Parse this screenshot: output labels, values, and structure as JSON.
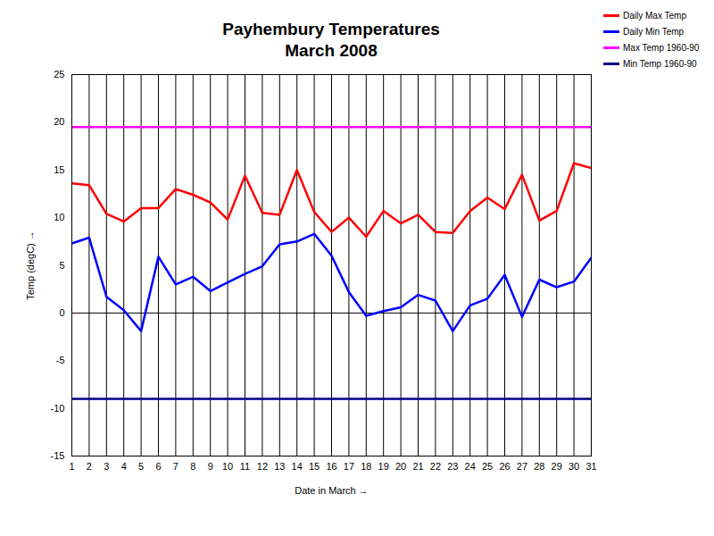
{
  "chart_data": {
    "type": "line",
    "title": "Payhembury Temperatures",
    "subtitle": "March 2008",
    "x_label": "Date in March",
    "y_label": "Temp (degC)",
    "x": [
      1,
      2,
      3,
      4,
      5,
      6,
      7,
      8,
      9,
      10,
      11,
      12,
      13,
      14,
      15,
      16,
      17,
      18,
      19,
      20,
      21,
      22,
      23,
      24,
      25,
      26,
      27,
      28,
      29,
      30,
      31
    ],
    "series": [
      {
        "name": "Daily Max Temp",
        "color": "#ff0000",
        "values": [
          13.6,
          13.4,
          10.4,
          9.6,
          11.0,
          11.0,
          13.0,
          12.4,
          11.6,
          9.8,
          14.4,
          10.5,
          10.3,
          15.0,
          10.6,
          8.5,
          10.0,
          8.0,
          10.7,
          9.4,
          10.3,
          8.5,
          8.4,
          10.7,
          12.1,
          10.9,
          14.5,
          9.7,
          10.7,
          15.7,
          15.2
        ]
      },
      {
        "name": "Daily Min Temp",
        "color": "#0000ff",
        "values": [
          7.3,
          7.9,
          1.7,
          0.3,
          -1.9,
          5.9,
          3.0,
          3.8,
          2.3,
          3.2,
          4.1,
          4.9,
          7.2,
          7.5,
          8.3,
          6.0,
          2.2,
          -0.3,
          0.2,
          0.6,
          1.9,
          1.3,
          -1.9,
          0.8,
          1.5,
          4.0,
          -0.4,
          3.5,
          2.7,
          3.3,
          5.8
        ]
      },
      {
        "name": "Max Temp 1960-90",
        "color": "#ff00ff",
        "values": [
          19.5,
          19.5,
          19.5,
          19.5,
          19.5,
          19.5,
          19.5,
          19.5,
          19.5,
          19.5,
          19.5,
          19.5,
          19.5,
          19.5,
          19.5,
          19.5,
          19.5,
          19.5,
          19.5,
          19.5,
          19.5,
          19.5,
          19.5,
          19.5,
          19.5,
          19.5,
          19.5,
          19.5,
          19.5,
          19.5,
          19.5
        ]
      },
      {
        "name": "Min Temp 1960-90",
        "color": "#000080",
        "values": [
          -9,
          -9,
          -9,
          -9,
          -9,
          -9,
          -9,
          -9,
          -9,
          -9,
          -9,
          -9,
          -9,
          -9,
          -9,
          -9,
          -9,
          -9,
          -9,
          -9,
          -9,
          -9,
          -9,
          -9,
          -9,
          -9,
          -9,
          -9,
          -9,
          -9,
          -9
        ]
      }
    ],
    "xlim": [
      1,
      31
    ],
    "xticks": [
      1,
      2,
      3,
      4,
      5,
      6,
      7,
      8,
      9,
      10,
      11,
      12,
      13,
      14,
      15,
      16,
      17,
      18,
      19,
      20,
      21,
      22,
      23,
      24,
      25,
      26,
      27,
      28,
      29,
      30,
      31
    ],
    "ylim": [
      -15,
      25
    ],
    "yticks": [
      -15,
      -10,
      -5,
      0,
      5,
      10,
      15,
      20,
      25
    ],
    "grid": "x",
    "legend": "right"
  }
}
